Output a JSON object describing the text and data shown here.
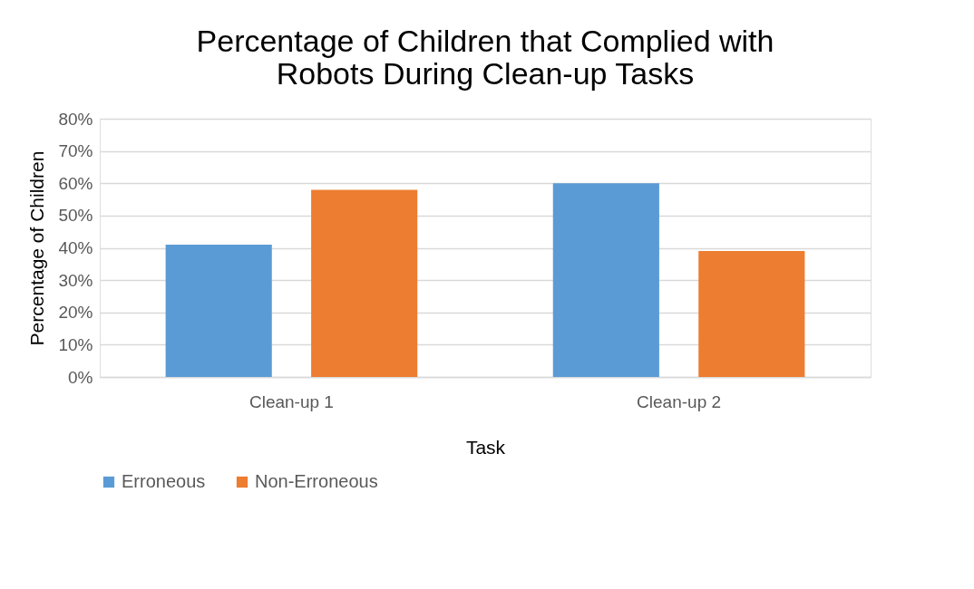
{
  "chart_data": {
    "type": "bar",
    "title": [
      "Percentage of Children that Complied with",
      "Robots During Clean-up Tasks"
    ],
    "xlabel": "Task",
    "ylabel": "Percentage of Children",
    "categories": [
      "Clean-up 1",
      "Clean-up 2"
    ],
    "series": [
      {
        "name": "Erroneous",
        "color": "#5b9bd5",
        "values": [
          41,
          60
        ]
      },
      {
        "name": "Non-Erroneous",
        "color": "#ed7d31",
        "values": [
          58,
          39
        ]
      }
    ],
    "ylim": [
      0,
      80
    ],
    "yticks": [
      {
        "value": 0,
        "label": "0%"
      },
      {
        "value": 10,
        "label": "10%"
      },
      {
        "value": 20,
        "label": "20%"
      },
      {
        "value": 30,
        "label": "30%"
      },
      {
        "value": 40,
        "label": "40%"
      },
      {
        "value": 50,
        "label": "50%"
      },
      {
        "value": 60,
        "label": "60%"
      },
      {
        "value": 70,
        "label": "70%"
      },
      {
        "value": 80,
        "label": "80%"
      }
    ],
    "grid": "y",
    "legend": "bottom"
  }
}
